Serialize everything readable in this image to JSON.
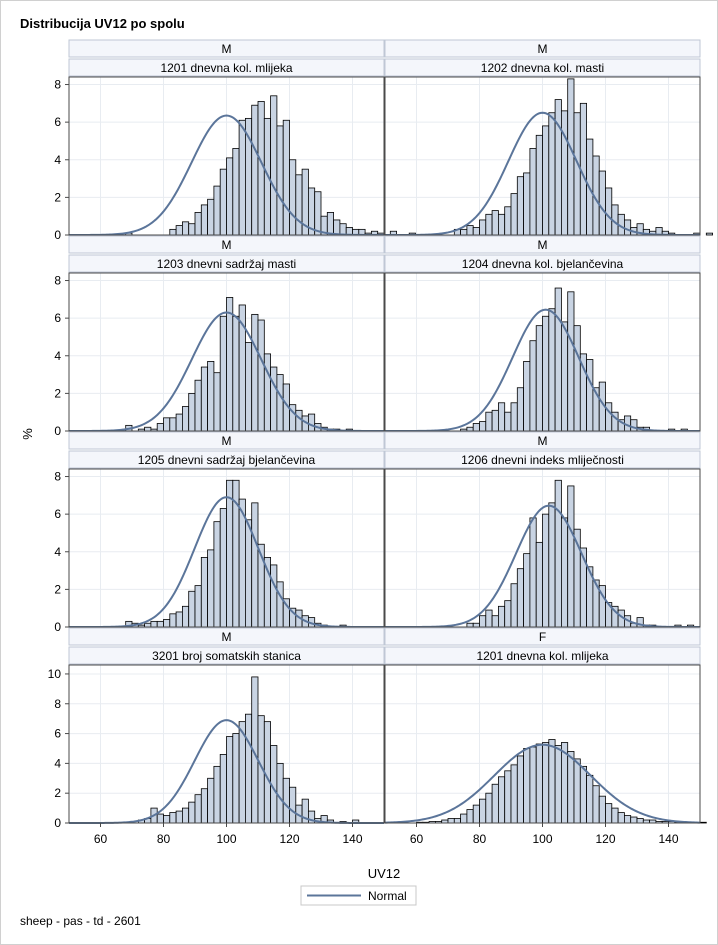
{
  "figure": {
    "title": "Distribucija UV12 po spolu",
    "xlabel": "UV12",
    "ylabel": "%",
    "legend_label": "Normal",
    "footnote": "sheep - pas - td - 2601"
  },
  "colors": {
    "bar_fill": "#c9d4e3",
    "bar_stroke": "#000000",
    "curve": "#5b759a",
    "grid": "#e8ecf1",
    "header_fill": "#f4f6fb",
    "frame": "#4a4a4a",
    "header_border": "#bfc7d5"
  },
  "chart_data": [
    {
      "type": "bar",
      "sex": "M",
      "trait": "1201 dnevna kol. mlijeka",
      "xlim": [
        50,
        150
      ],
      "ylim": [
        0,
        8.4
      ],
      "yticks": [
        0,
        2,
        4,
        6,
        8
      ],
      "xticks": [
        60,
        80,
        100,
        120,
        140
      ],
      "bin_width": 2,
      "bin_start": 68,
      "values": [
        0.1,
        0,
        0,
        0,
        0,
        0,
        0,
        0.3,
        0.5,
        0.7,
        0.6,
        1.2,
        1.6,
        1.9,
        2.6,
        3.5,
        4.1,
        4.6,
        6.1,
        6.2,
        6.9,
        7.1,
        6.2,
        7.4,
        5.8,
        6.1,
        4.0,
        3.2,
        3.5,
        2.5,
        2.3,
        1.0,
        1.2,
        0.8,
        0.6,
        0.4,
        0.3,
        0.3,
        0.1,
        0.2,
        0.1,
        0,
        0.2,
        0,
        0,
        0.1
      ],
      "curve": {
        "type": "normal",
        "mean": 100,
        "sd": 11.1,
        "scale_peak": 6.35
      }
    },
    {
      "type": "bar",
      "sex": "M",
      "trait": "1202 dnevna kol. masti",
      "xlim": [
        50,
        150
      ],
      "ylim": [
        0,
        8.4
      ],
      "yticks": [
        0,
        2,
        4,
        6,
        8
      ],
      "xticks": [
        60,
        80,
        100,
        120,
        140
      ],
      "bin_width": 2,
      "bin_start": 72,
      "values": [
        0.3,
        0.3,
        0.5,
        0.4,
        0.8,
        1.1,
        1.3,
        1.1,
        1.5,
        2.2,
        3.1,
        3.3,
        4.6,
        5.3,
        5.8,
        6.5,
        7.2,
        6.6,
        8.3,
        6.5,
        7.0,
        5.1,
        4.2,
        3.4,
        2.5,
        1.6,
        1.1,
        0.8,
        0.4,
        0.6,
        0.3,
        0.2,
        0.4,
        0.2,
        0.1,
        0,
        0,
        0,
        0.1,
        0,
        0.1
      ],
      "curve": {
        "type": "normal",
        "mean": 100,
        "sd": 10.8,
        "scale_peak": 6.5
      }
    },
    {
      "type": "bar",
      "sex": "M",
      "trait": "1203 dnevni sadržaj masti",
      "xlim": [
        50,
        150
      ],
      "ylim": [
        0,
        8.4
      ],
      "yticks": [
        0,
        2,
        4,
        6,
        8
      ],
      "xticks": [
        60,
        80,
        100,
        120,
        140
      ],
      "bin_width": 2,
      "bin_start": 68,
      "values": [
        0.3,
        0,
        0.1,
        0.2,
        0.1,
        0.4,
        0.7,
        0.7,
        0.9,
        1.3,
        2.0,
        2.7,
        3.4,
        3.7,
        3.1,
        6.1,
        7.1,
        6.1,
        6.7,
        4.7,
        6.2,
        5.9,
        4.1,
        3.4,
        3.0,
        2.5,
        1.4,
        1.1,
        0.8,
        0.9,
        0.4,
        0.2,
        0.1,
        0.1,
        0,
        0.1
      ],
      "curve": {
        "type": "normal",
        "mean": 100,
        "sd": 11.0,
        "scale_peak": 6.3
      }
    },
    {
      "type": "bar",
      "sex": "M",
      "trait": "1204 dnevna kol. bjelančevina",
      "xlim": [
        50,
        150
      ],
      "ylim": [
        0,
        8.4
      ],
      "yticks": [
        0,
        2,
        4,
        6,
        8
      ],
      "xticks": [
        60,
        80,
        100,
        120,
        140
      ],
      "bin_width": 2,
      "bin_start": 74,
      "values": [
        0.1,
        0.2,
        0.4,
        0.5,
        1.0,
        1.1,
        1.5,
        1.0,
        1.5,
        2.3,
        3.7,
        4.8,
        5.6,
        6.1,
        6.5,
        7.6,
        5.8,
        7.4,
        5.6,
        4.1,
        3.8,
        2.3,
        2.6,
        1.5,
        1.0,
        0.6,
        0.8,
        0.6,
        0.2,
        0.2,
        0,
        0,
        0,
        0.1,
        0,
        0.1
      ],
      "curve": {
        "type": "normal",
        "mean": 101,
        "sd": 10.5,
        "scale_peak": 6.45
      }
    },
    {
      "type": "bar",
      "sex": "M",
      "trait": "1205 dnevni sadržaj bjelančevina",
      "xlim": [
        50,
        150
      ],
      "ylim": [
        0,
        8.4
      ],
      "yticks": [
        0,
        2,
        4,
        6,
        8
      ],
      "xticks": [
        60,
        80,
        100,
        120,
        140
      ],
      "bin_width": 2,
      "bin_start": 68,
      "values": [
        0.3,
        0.2,
        0.1,
        0.2,
        0.3,
        0.3,
        0.4,
        0.7,
        0.8,
        1.1,
        1.9,
        2.2,
        3.7,
        4.1,
        5.6,
        6.3,
        7.8,
        7.8,
        6.8,
        5.7,
        6.6,
        4.4,
        3.7,
        3.3,
        2.4,
        1.5,
        1.0,
        0.9,
        0.6,
        0.5,
        0.2,
        0.1,
        0,
        0,
        0.1
      ],
      "curve": {
        "type": "normal",
        "mean": 100,
        "sd": 10.1,
        "scale_peak": 6.9
      }
    },
    {
      "type": "bar",
      "sex": "M",
      "trait": "1206 dnevni indeks mliječnosti",
      "xlim": [
        50,
        150
      ],
      "ylim": [
        0,
        8.4
      ],
      "yticks": [
        0,
        2,
        4,
        6,
        8
      ],
      "xticks": [
        60,
        80,
        100,
        120,
        140
      ],
      "bin_width": 2,
      "bin_start": 76,
      "values": [
        0.2,
        0.2,
        0.6,
        0.9,
        0.6,
        1.1,
        1.4,
        2.3,
        3.1,
        3.9,
        5.8,
        4.5,
        6.0,
        6.6,
        7.8,
        5.8,
        7.5,
        5.2,
        4.2,
        3.2,
        2.5,
        2.2,
        1.3,
        1.1,
        0.9,
        0.6,
        0.2,
        0.5,
        0.1,
        0.1,
        0,
        0,
        0,
        0.1,
        0,
        0.1
      ],
      "curve": {
        "type": "normal",
        "mean": 102,
        "sd": 10.4,
        "scale_peak": 6.45
      }
    },
    {
      "type": "bar",
      "sex": "M",
      "trait": "3201 broj somatskih stanica",
      "xlim": [
        50,
        150
      ],
      "ylim": [
        0,
        10.6
      ],
      "yticks": [
        0,
        2,
        4,
        6,
        8,
        10
      ],
      "xticks": [
        60,
        80,
        100,
        120,
        140
      ],
      "bin_width": 2,
      "bin_start": 72,
      "values": [
        0.2,
        0.3,
        1.0,
        0.6,
        0.5,
        0.7,
        0.8,
        1.0,
        1.4,
        1.9,
        2.3,
        3.0,
        3.8,
        4.6,
        5.8,
        6.0,
        6.8,
        7.3,
        9.8,
        7.2,
        6.8,
        5.2,
        4.0,
        3.0,
        2.4,
        1.2,
        1.6,
        0.8,
        0.3,
        0.5,
        0.2,
        0,
        0.1,
        0,
        0.2
      ],
      "curve": {
        "type": "normal",
        "mean": 100,
        "sd": 10.1,
        "scale_peak": 6.9
      }
    },
    {
      "type": "bar",
      "sex": "F",
      "trait": "1201 dnevna kol. mlijeka",
      "xlim": [
        50,
        150
      ],
      "ylim": [
        0,
        10.6
      ],
      "yticks": [
        0,
        2,
        4,
        6,
        8,
        10
      ],
      "xticks": [
        60,
        80,
        100,
        120,
        140
      ],
      "bin_width": 2,
      "bin_start": 60,
      "values": [
        0.05,
        0.05,
        0.1,
        0.1,
        0.2,
        0.3,
        0.3,
        0.6,
        0.9,
        1.2,
        1.6,
        2.0,
        2.6,
        3.1,
        3.5,
        3.9,
        4.5,
        5.0,
        5.1,
        5.3,
        5.4,
        5.6,
        5.2,
        5.4,
        4.8,
        4.3,
        3.8,
        3.2,
        2.5,
        1.8,
        1.3,
        1.0,
        0.7,
        0.5,
        0.4,
        0.3,
        0.2,
        0.2,
        0.1,
        0.1,
        0.1,
        0.05,
        0.05,
        0,
        0,
        0.05
      ],
      "curve": {
        "type": "normal",
        "mean": 100,
        "sd": 15.3,
        "scale_peak": 5.25
      }
    }
  ]
}
